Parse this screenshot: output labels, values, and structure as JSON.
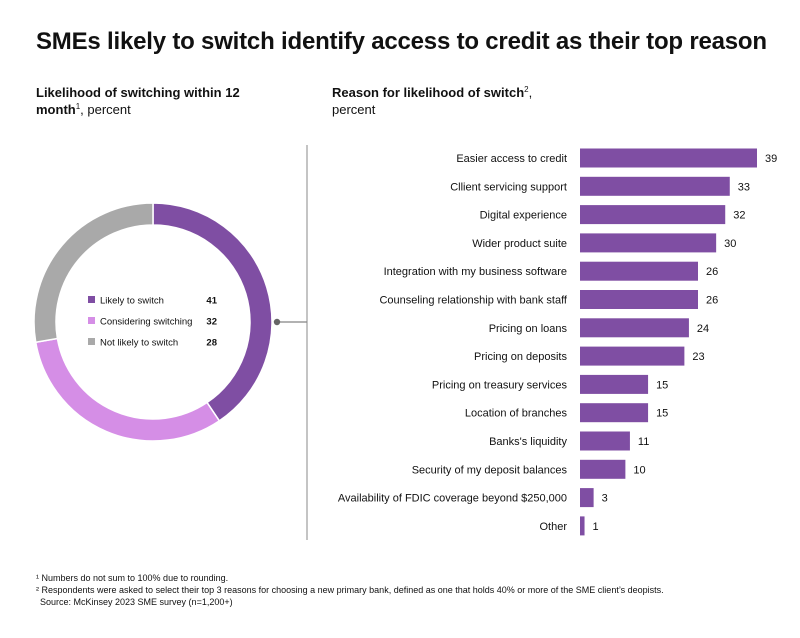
{
  "title": "SMEs likely to switch identify access to credit as their top reason",
  "left_subtitle": {
    "bold": "Likelihood of switching within 12 month",
    "sup": "1",
    "rest": ", percent"
  },
  "right_subtitle": {
    "bold": "Reason for likelihood of switch",
    "sup": "2",
    "rest": ",",
    "line2": "percent"
  },
  "footnotes": [
    "¹ Numbers do not sum to 100% due to rounding.",
    "² Respondents were asked to select their top 3 reasons for choosing a new primary bank, defined as one that holds 40% or more of the SME client’s deopists.",
    "Source: McKinsey 2023 SME survey (n=1,200+)"
  ],
  "chart_data": [
    {
      "type": "pie",
      "donut": true,
      "title": "Likelihood of switching within 12 month, percent",
      "categories": [
        "Likely to switch",
        "Considering switching",
        "Not likely to switch"
      ],
      "values": [
        41,
        32,
        28
      ],
      "colors": [
        "#7f4ea3",
        "#d58ee6",
        "#a9a9a9"
      ]
    },
    {
      "type": "bar",
      "orientation": "horizontal",
      "title": "Reason for likelihood of switch, percent",
      "categories": [
        "Easier access to credit",
        "Cllient servicing support",
        "Digital experience",
        "Wider product suite",
        "Integration with my business software",
        "Counseling relationship with bank staff",
        "Pricing on loans",
        "Pricing on deposits",
        "Pricing on treasury services",
        "Location of branches",
        "Banks's liquidity",
        "Security of my deposit balances",
        "Availability of FDIC coverage beyond $250,000",
        "Other"
      ],
      "values": [
        39,
        33,
        32,
        30,
        26,
        26,
        24,
        23,
        15,
        15,
        11,
        10,
        3,
        1
      ],
      "color": "#7f4ea3",
      "xlim": [
        0,
        39
      ]
    }
  ]
}
